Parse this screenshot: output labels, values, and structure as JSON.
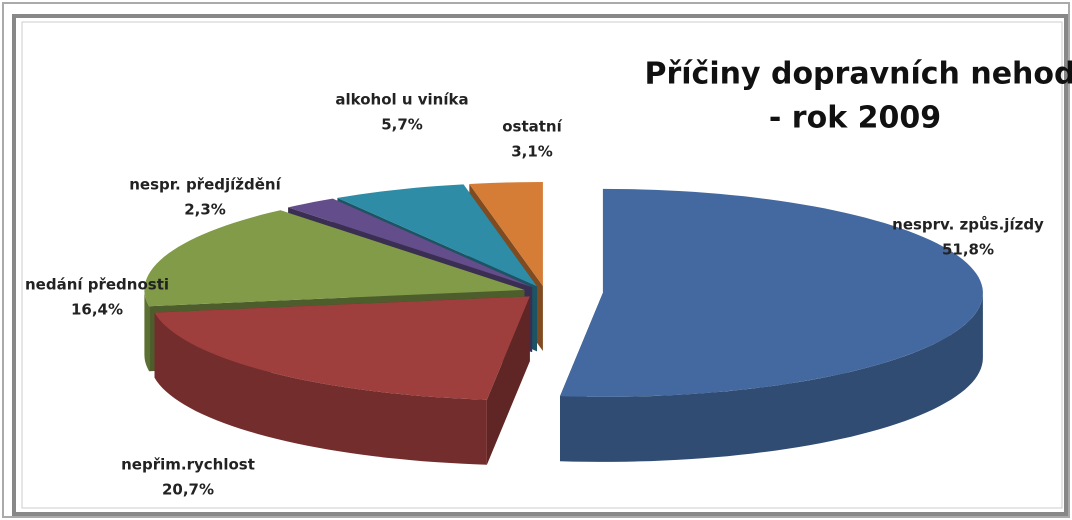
{
  "chart_data": {
    "type": "pie3d",
    "title": [
      "Příčiny dopravních nehod",
      "- rok 2009"
    ],
    "categories": [
      "nesprv. způs.jízdy",
      "nepřim.rychlost",
      "nedání přednosti",
      "nespr. předjíždění",
      "alkohol u viníka",
      "ostatní"
    ],
    "values": [
      51.8,
      20.7,
      16.4,
      2.3,
      5.7,
      3.1
    ],
    "value_labels": [
      "51,8%",
      "20,7%",
      "16,4%",
      "2,3%",
      "5,7%",
      "3,1%"
    ],
    "colors": [
      "#4369a0",
      "#9e3f3d",
      "#819b48",
      "#634d8a",
      "#2f8ca6",
      "#d57d37"
    ]
  }
}
